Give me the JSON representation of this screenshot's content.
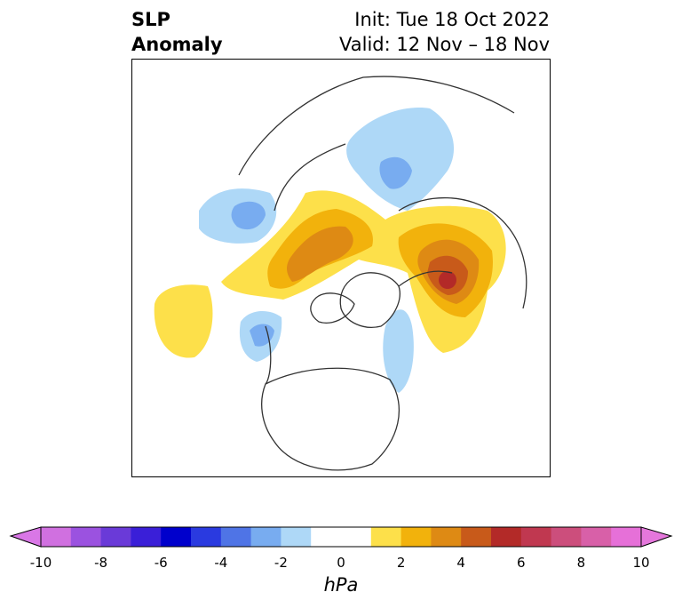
{
  "title": {
    "left_line1": "SLP",
    "left_line2": "Anomaly",
    "right_line1": "Init: Tue 18 Oct 2022",
    "right_line2": "Valid: 12 Nov – 18 Nov"
  },
  "map": {
    "projection": "north-polar-stereographic",
    "region": "Northern Hemisphere",
    "features": [
      {
        "type": "positive-anomaly",
        "location": "Greenland / Canadian Arctic",
        "max_hpa": 5
      },
      {
        "type": "positive-anomaly",
        "location": "Barents Sea / NW Russia",
        "max_hpa": 7
      },
      {
        "type": "positive-anomaly",
        "location": "North Pacific",
        "max_hpa": 2
      },
      {
        "type": "negative-anomaly",
        "location": "Central Siberia",
        "min_hpa": -3
      },
      {
        "type": "negative-anomaly",
        "location": "Northern Europe",
        "min_hpa": -3
      },
      {
        "type": "negative-anomaly",
        "location": "Alaska / NE Pacific",
        "min_hpa": -3
      },
      {
        "type": "negative-anomaly",
        "location": "NW Atlantic off Canada",
        "min_hpa": -2
      }
    ]
  },
  "colorbar": {
    "units": "hPa",
    "ticks": [
      "-10",
      "-8",
      "-6",
      "-4",
      "-2",
      "0",
      "2",
      "4",
      "6",
      "8",
      "10"
    ],
    "colors": [
      "#d070e0",
      "#9b52e0",
      "#6a3ad8",
      "#3a1fd8",
      "#0000cc",
      "#2a3ae0",
      "#4f74e6",
      "#78acf0",
      "#aed8f7",
      "#ffffff",
      "#ffffff",
      "#fde04a",
      "#f2b20c",
      "#de8a14",
      "#c85a1a",
      "#b32a28",
      "#c03850",
      "#cc4e7c",
      "#d860a8",
      "#e670d8"
    ],
    "left_extend_color": "#d977e6",
    "right_extend_color": "#e577dc"
  }
}
